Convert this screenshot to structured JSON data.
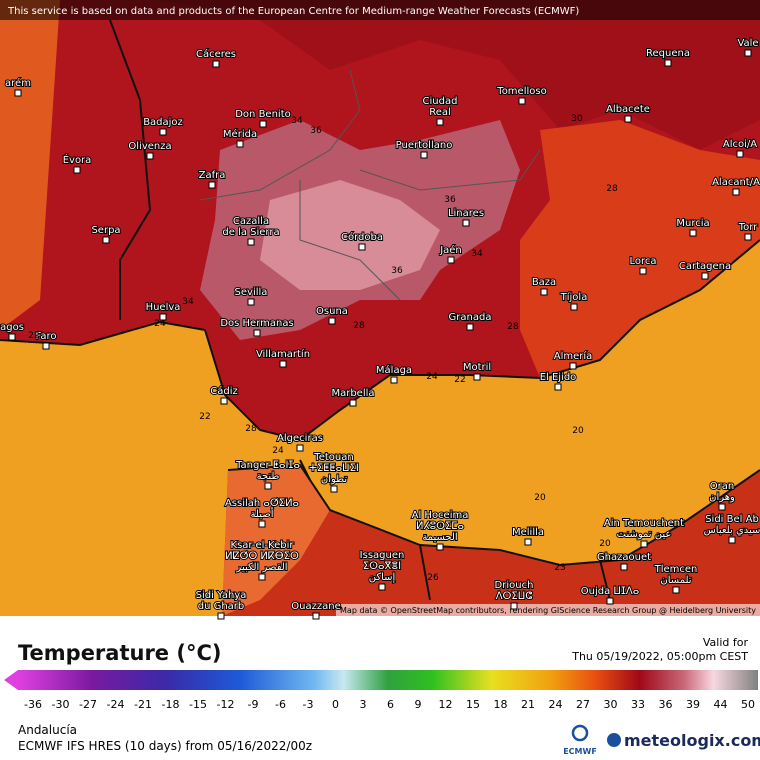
{
  "attribution": "This service is based on data and products of the European Centre for Medium-range Weather Forecasts (ECMWF)",
  "map_credit": "Map data © OpenStreetMap contributors, rendering GIScience Research Group @ Heidelberg University",
  "places": [
    [
      "Cáceres"
    ],
    [
      "Requena"
    ],
    [
      "Vale"
    ],
    [
      "arém"
    ],
    [
      "Ciudad",
      "Real"
    ],
    [
      "Tomelloso"
    ],
    [
      "Badajoz"
    ],
    [
      "Don Benito"
    ],
    [
      "Mérida"
    ],
    [
      "Albacete"
    ],
    [
      "Olivenza"
    ],
    [
      "Évora"
    ],
    [
      "Puertollano"
    ],
    [
      "Alcoi/A"
    ],
    [
      "Zafra"
    ],
    [
      "Alacant/A"
    ],
    [
      "Linares"
    ],
    [
      "Murcia"
    ],
    [
      "Torr"
    ],
    [
      "Cazalla",
      "de la Sierra"
    ],
    [
      "Serpa"
    ],
    [
      "Córdoba"
    ],
    [
      "Jaén"
    ],
    [
      "Lorca"
    ],
    [
      "Cartagena"
    ],
    [
      "Baza"
    ],
    [
      "Tíjola"
    ],
    [
      "Huelva"
    ],
    [
      "Sevilla"
    ],
    [
      "Dos Hermanas"
    ],
    [
      "Osuna"
    ],
    [
      "Granada"
    ],
    [
      "agos"
    ],
    [
      "Faro"
    ],
    [
      "Villamartín"
    ],
    [
      "Almería"
    ],
    [
      "Málaga"
    ],
    [
      "Motril"
    ],
    [
      "El Ejido"
    ],
    [
      "Marbella"
    ],
    [
      "Cádiz"
    ],
    [
      "Algeciras"
    ],
    [
      "Tanger ⵟⴰⵏⵊⴰ",
      "طنجة"
    ],
    [
      "Tetouan",
      "ⵜⵉⵟⵟⴰⵡⵉⵏ",
      "تطوان"
    ],
    [
      "Assilah ⴰⵚⵉⵍⴰ",
      "أصيلة"
    ],
    [
      "Al Hoceima",
      "ⵍⵃⵓⵙⵉⵎⴰ",
      "الحسيمة"
    ],
    [
      "Melilla"
    ],
    [
      "Oran",
      "وهران"
    ],
    [
      "Ain Temouchent",
      "عين تموشنت"
    ],
    [
      "Sidi Bel Ab",
      "سيدي بلعباس"
    ],
    [
      "Ghazaouet"
    ],
    [
      "Ksar-el-Kebir",
      "ⵍⵇⵚⵔ ⵍⴽⴱⵉⵔ",
      "القصر الكبير"
    ],
    [
      "Issaguen",
      "ⵉⵙⴰⴳⴻⵏ",
      "إساكن"
    ],
    [
      "Driouch",
      "ⴷⵔⵉⵡⵛ"
    ],
    [
      "Tlemcen",
      "تلمسان"
    ],
    [
      "Oujda ⵡⵊⴷⴰ"
    ],
    [
      "Sidi Yahya",
      "du Gharb"
    ],
    [
      "Ouazzane"
    ]
  ],
  "contour_labels": [
    36,
    34,
    36,
    34,
    36,
    30,
    28,
    34,
    22,
    24,
    22,
    28,
    24,
    24,
    22,
    28,
    28,
    20,
    20,
    20,
    26,
    23
  ],
  "legend": {
    "title": "Temperature (°C)",
    "ticks": [
      -36,
      -30,
      -27,
      -24,
      -21,
      -18,
      -15,
      -12,
      -9,
      -6,
      -3,
      0,
      3,
      6,
      9,
      12,
      15,
      18,
      21,
      24,
      27,
      30,
      33,
      36,
      39,
      44,
      50
    ]
  },
  "valid_label": "Valid for",
  "valid_time": "Thu 05/19/2022, 05:00pm CEST",
  "region": "Andalucía",
  "model": "ECMWF IFS HRES (10 days) from 05/16/2022/00z",
  "ecmwf_logo": "ECMWF",
  "brand": "meteologix.com"
}
